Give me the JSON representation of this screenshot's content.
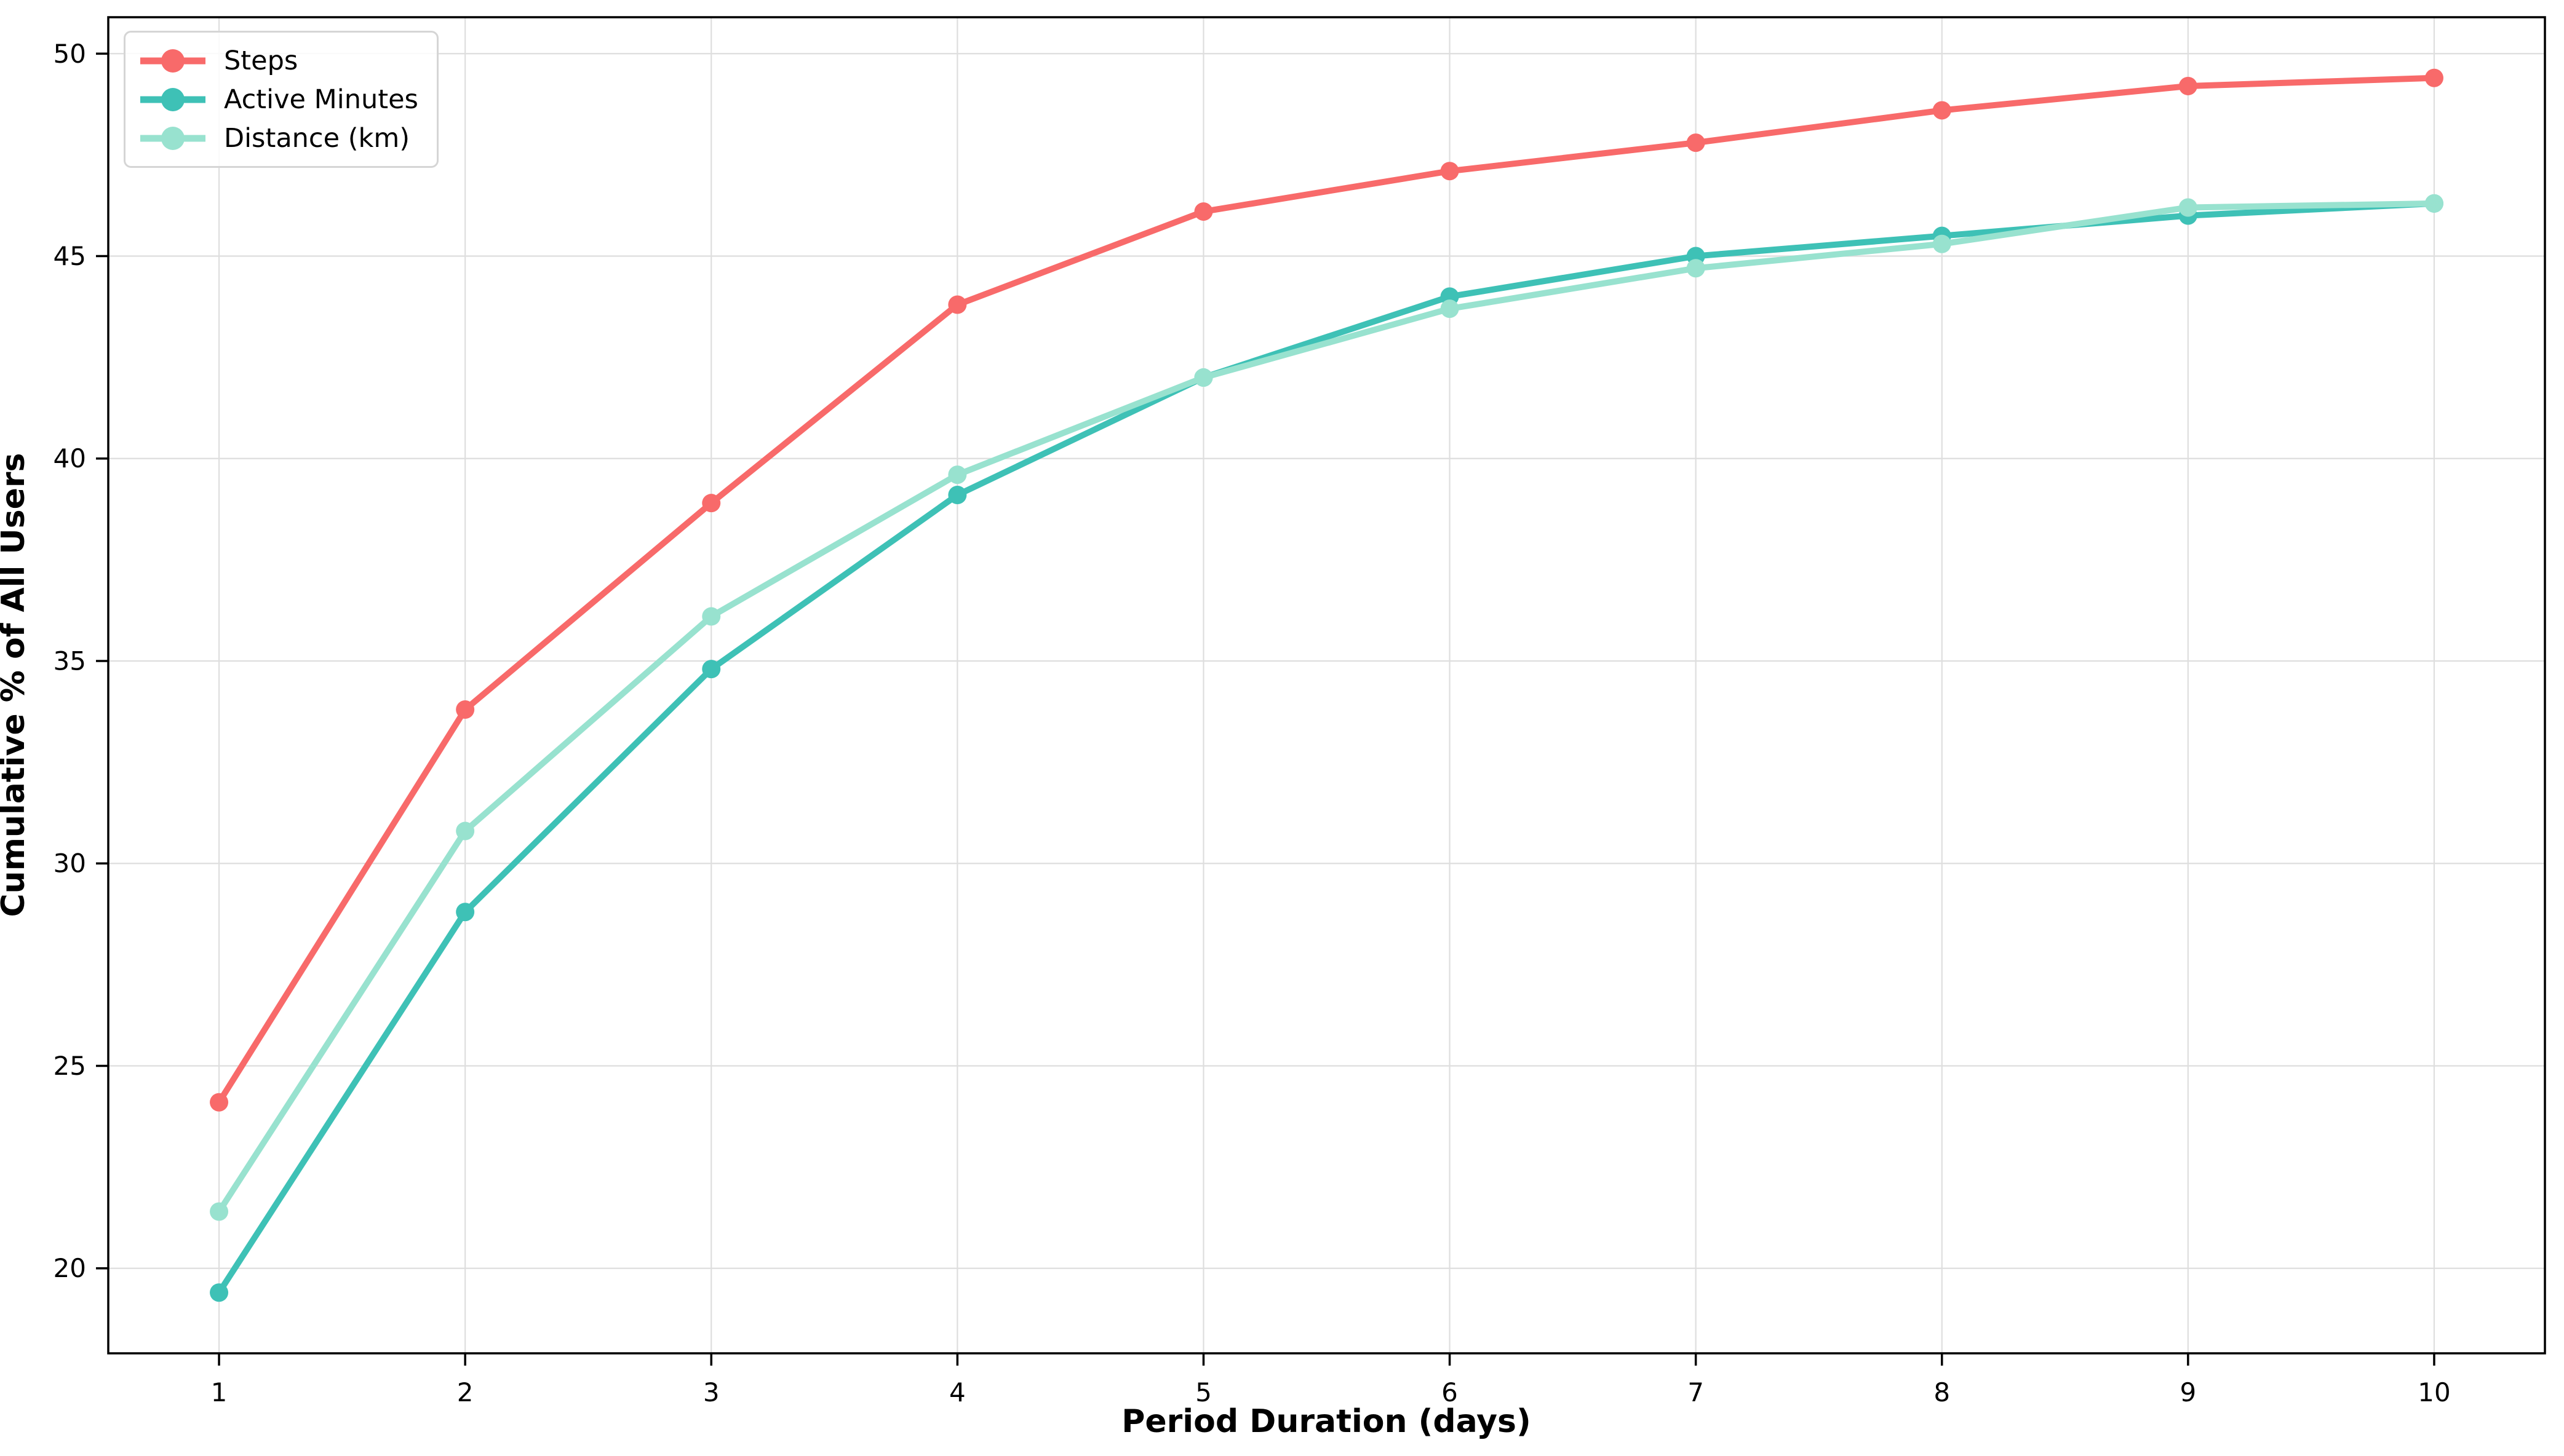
{
  "figure": {
    "background_color": "#ffffff",
    "spine_color": "#000000",
    "tick_label_color": "#000000"
  },
  "chart_data": {
    "type": "line",
    "title": "",
    "xlabel": "Period Duration (days)",
    "ylabel": "Cumulative % of All Users",
    "x": [
      1,
      2,
      3,
      4,
      5,
      6,
      7,
      8,
      9,
      10
    ],
    "x_tick_labels": [
      "1",
      "2",
      "3",
      "4",
      "5",
      "6",
      "7",
      "8",
      "9",
      "10"
    ],
    "y_ticks": [
      20,
      25,
      30,
      35,
      40,
      45,
      50
    ],
    "y_tick_labels": [
      "20",
      "25",
      "30",
      "35",
      "40",
      "45",
      "50"
    ],
    "xlim": [
      0.55,
      10.45
    ],
    "ylim": [
      17.9,
      50.9
    ],
    "grid": true,
    "grid_color": "#dedede",
    "legend_position": "upper-left",
    "series": [
      {
        "name": "Steps",
        "color": "#f86a6a",
        "values": [
          24.1,
          33.8,
          38.9,
          43.8,
          46.1,
          47.1,
          47.8,
          48.6,
          49.2,
          49.4
        ]
      },
      {
        "name": "Active Minutes",
        "color": "#3ec1b6",
        "values": [
          19.4,
          28.8,
          34.8,
          39.1,
          42.0,
          44.0,
          45.0,
          45.5,
          46.0,
          46.3
        ]
      },
      {
        "name": "Distance (km)",
        "color": "#98e2cf",
        "values": [
          21.4,
          30.8,
          36.1,
          39.6,
          42.0,
          43.7,
          44.7,
          45.3,
          46.2,
          46.3
        ]
      }
    ]
  }
}
